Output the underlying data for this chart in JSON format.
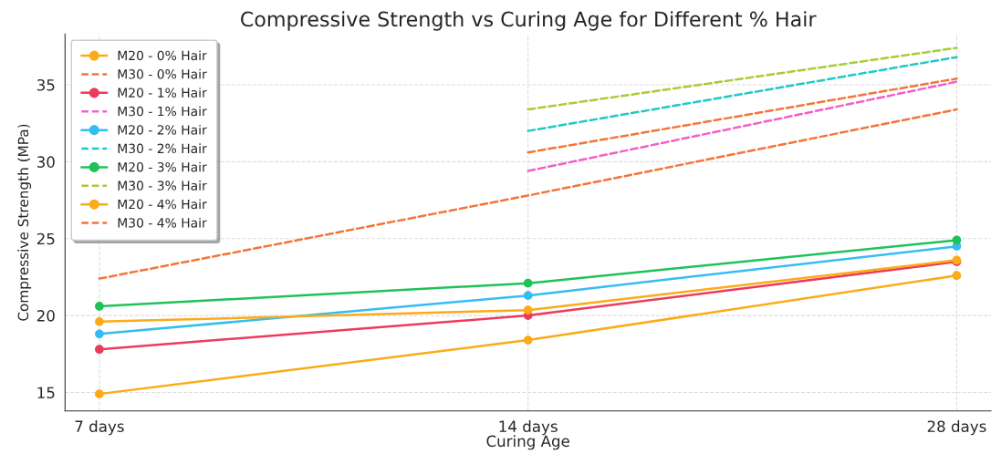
{
  "chart_data": {
    "type": "line",
    "title": "Compressive Strength vs Curing Age for Different % Hair",
    "xlabel": "Curing Age",
    "ylabel": "Compressive Strength (MPa)",
    "categories": [
      "7 days",
      "14 days",
      "28 days"
    ],
    "series": [
      {
        "name": "M20 - 0% Hair",
        "color": "#fbab18",
        "marker": "circle",
        "line_style": "solid",
        "values": [
          14.9,
          18.4,
          22.6
        ]
      },
      {
        "name": "M30 - 0% Hair",
        "color": "#f2763a",
        "marker": "none",
        "line_style": "dashed",
        "values": [
          null,
          30.6,
          35.4
        ]
      },
      {
        "name": "M20 - 1% Hair",
        "color": "#ec3b5c",
        "marker": "circle",
        "line_style": "solid",
        "values": [
          17.8,
          20.0,
          23.5
        ]
      },
      {
        "name": "M30 - 1% Hair",
        "color": "#f25fc8",
        "marker": "none",
        "line_style": "dashed",
        "values": [
          null,
          29.4,
          35.2
        ]
      },
      {
        "name": "M20 - 2% Hair",
        "color": "#35bdf2",
        "marker": "circle",
        "line_style": "solid",
        "values": [
          18.8,
          21.3,
          24.5
        ]
      },
      {
        "name": "M30 - 2% Hair",
        "color": "#22c8c8",
        "marker": "none",
        "line_style": "dashed",
        "values": [
          null,
          32.0,
          36.8
        ]
      },
      {
        "name": "M20 - 3% Hair",
        "color": "#1fc259",
        "marker": "circle",
        "line_style": "solid",
        "values": [
          20.6,
          22.1,
          24.9
        ]
      },
      {
        "name": "M30 - 3% Hair",
        "color": "#a8cc37",
        "marker": "none",
        "line_style": "dashed",
        "values": [
          null,
          33.4,
          37.4
        ]
      },
      {
        "name": "M20 - 4% Hair",
        "color": "#fbab18",
        "marker": "circle",
        "line_style": "solid",
        "values": [
          19.6,
          20.35,
          23.6
        ]
      },
      {
        "name": "M30 - 4% Hair",
        "color": "#f2763a",
        "marker": "none",
        "line_style": "dashed",
        "values": [
          22.4,
          27.8,
          33.4
        ]
      }
    ],
    "ylim": [
      13.8,
      38.3
    ],
    "yticks": [
      15,
      20,
      25,
      30,
      35
    ],
    "grid": true,
    "legend": "top left"
  }
}
